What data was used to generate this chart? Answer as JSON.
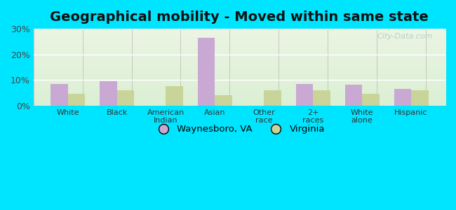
{
  "title": "Geographical mobility - Moved within same state",
  "categories": [
    "White",
    "Black",
    "American\nIndian",
    "Asian",
    "Other\nrace",
    "2+\nraces",
    "White\nalone",
    "Hispanic"
  ],
  "waynesboro": [
    8.5,
    9.5,
    0.0,
    26.5,
    0.0,
    8.5,
    8.0,
    6.5
  ],
  "virginia": [
    4.5,
    6.0,
    7.5,
    4.0,
    6.0,
    6.0,
    4.5,
    6.0
  ],
  "waynesboro_color": "#c9a8d4",
  "virginia_color": "#c8d49a",
  "ylim": [
    0,
    30
  ],
  "yticks": [
    0,
    10,
    20,
    30
  ],
  "ytick_labels": [
    "0%",
    "10%",
    "20%",
    "30%"
  ],
  "outer_bg": "#00e5ff",
  "title_fontsize": 14,
  "legend_waynesboro": "Waynesboro, VA",
  "legend_virginia": "Virginia",
  "bar_width": 0.35,
  "watermark": "City-Data.com",
  "grad_top": "#d8efd4",
  "grad_bottom": "#f0f8ec"
}
